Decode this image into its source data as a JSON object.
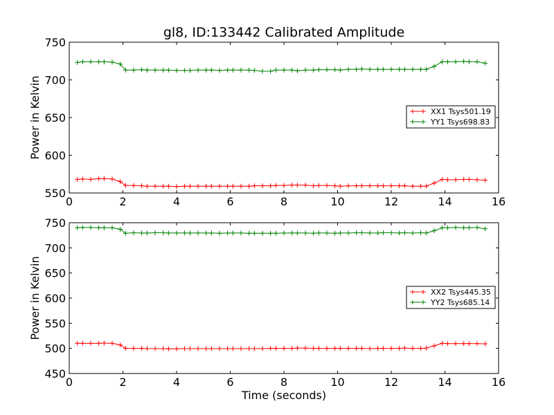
{
  "title": "gl8, ID:133442 Calibrated Amplitude",
  "chart_data": [
    {
      "type": "line",
      "title": "gl8, ID:133442 Calibrated Amplitude",
      "xlabel": "",
      "ylabel": "Power in Kelvin",
      "xlim": [
        0,
        16
      ],
      "ylim": [
        550,
        750
      ],
      "xticks": [
        "0",
        "2",
        "4",
        "6",
        "8",
        "10",
        "12",
        "14",
        "16"
      ],
      "yticks": [
        "550",
        "600",
        "650",
        "700",
        "750"
      ],
      "grid": false,
      "legend_position": "right",
      "x": [
        0.3,
        0.5,
        0.8,
        1.1,
        1.3,
        1.6,
        1.9,
        2.1,
        2.4,
        2.7,
        2.9,
        3.2,
        3.5,
        3.7,
        4.0,
        4.3,
        4.5,
        4.8,
        5.1,
        5.3,
        5.6,
        5.9,
        6.1,
        6.4,
        6.7,
        6.9,
        7.2,
        7.5,
        7.7,
        8.0,
        8.3,
        8.5,
        8.8,
        9.1,
        9.3,
        9.6,
        9.9,
        10.1,
        10.4,
        10.7,
        10.9,
        11.2,
        11.5,
        11.7,
        12.0,
        12.3,
        12.5,
        12.8,
        13.1,
        13.3,
        13.6,
        13.9,
        14.1,
        14.4,
        14.7,
        14.9,
        15.2,
        15.5
      ],
      "series": [
        {
          "name": "XX1 Tsys501.19",
          "color": "#ff0000",
          "values": [
            568,
            568.5,
            568,
            569,
            569,
            568.5,
            565,
            560,
            560,
            559.5,
            559,
            559,
            559,
            559,
            558.5,
            559,
            559,
            559,
            559,
            559,
            559,
            559,
            559,
            559,
            559,
            559.5,
            559.5,
            559.5,
            560,
            560,
            560.5,
            560.5,
            560.5,
            559.5,
            560,
            560,
            559.5,
            559,
            559.5,
            559.5,
            559.5,
            559.5,
            559.5,
            559.5,
            559.5,
            559.5,
            559.5,
            559,
            559,
            559,
            563,
            568,
            567.5,
            567.5,
            568,
            568,
            567.5,
            567
          ]
        },
        {
          "name": "YY1 Tsys698.83",
          "color": "#008000",
          "values": [
            723,
            724,
            724,
            724,
            724,
            723.5,
            721,
            713,
            713,
            713.5,
            713,
            713,
            713,
            713,
            712.5,
            712.5,
            712.5,
            713,
            713,
            713,
            712.5,
            713,
            713,
            713,
            713,
            712.5,
            711.5,
            711.5,
            713,
            713,
            713,
            712,
            713,
            713,
            713.5,
            713.5,
            713.5,
            713,
            714,
            714,
            714.5,
            714,
            714,
            714,
            714,
            714,
            714,
            714,
            714,
            714,
            718,
            724,
            724,
            724,
            724.5,
            724,
            724,
            722
          ]
        }
      ]
    },
    {
      "type": "line",
      "title": "",
      "xlabel": "Time (seconds)",
      "ylabel": "Power in Kelvin",
      "xlim": [
        0,
        16
      ],
      "ylim": [
        450,
        750
      ],
      "xticks": [
        "0",
        "2",
        "4",
        "6",
        "8",
        "10",
        "12",
        "14",
        "16"
      ],
      "yticks": [
        "450",
        "500",
        "550",
        "600",
        "650",
        "700",
        "750"
      ],
      "grid": false,
      "legend_position": "right",
      "x": [
        0.3,
        0.5,
        0.8,
        1.1,
        1.3,
        1.6,
        1.9,
        2.1,
        2.4,
        2.7,
        2.9,
        3.2,
        3.5,
        3.7,
        4.0,
        4.3,
        4.5,
        4.8,
        5.1,
        5.3,
        5.6,
        5.9,
        6.1,
        6.4,
        6.7,
        6.9,
        7.2,
        7.5,
        7.7,
        8.0,
        8.3,
        8.5,
        8.8,
        9.1,
        9.3,
        9.6,
        9.9,
        10.1,
        10.4,
        10.7,
        10.9,
        11.2,
        11.5,
        11.7,
        12.0,
        12.3,
        12.5,
        12.8,
        13.1,
        13.3,
        13.6,
        13.9,
        14.1,
        14.4,
        14.7,
        14.9,
        15.2,
        15.5
      ],
      "series": [
        {
          "name": "XX2 Tsys445.35",
          "color": "#ff0000",
          "values": [
            510,
            510,
            510,
            510,
            510.5,
            510,
            507,
            500,
            500,
            500,
            499.5,
            499.5,
            499.5,
            499,
            499,
            499.5,
            499.5,
            499.5,
            499.5,
            499.5,
            499.5,
            499.5,
            499.5,
            499.5,
            499.5,
            499.5,
            499.5,
            500,
            500,
            500,
            500,
            500.5,
            500.5,
            500,
            500,
            500,
            500,
            500,
            500,
            500,
            500,
            499.5,
            500,
            500,
            500,
            500,
            500.5,
            500,
            500,
            500.5,
            505,
            510,
            509.5,
            509.5,
            509.5,
            509.5,
            509.5,
            509
          ]
        },
        {
          "name": "YY2 Tsys685.14",
          "color": "#008000",
          "values": [
            740,
            740.5,
            740.5,
            740,
            740,
            740,
            737,
            729,
            730,
            729.5,
            729.5,
            730,
            730,
            729.5,
            729.5,
            729.5,
            729.5,
            729.5,
            729.5,
            729.5,
            729,
            729.5,
            729.5,
            729.5,
            729,
            729,
            729,
            729,
            729,
            729.5,
            729.5,
            729.5,
            729.5,
            729,
            729.5,
            729.5,
            729,
            729.5,
            729.5,
            730,
            730,
            729.5,
            729.5,
            730,
            730,
            729.5,
            730,
            729.5,
            730,
            729.5,
            734,
            740,
            740,
            740.5,
            740,
            740,
            740.5,
            738
          ]
        }
      ]
    }
  ]
}
